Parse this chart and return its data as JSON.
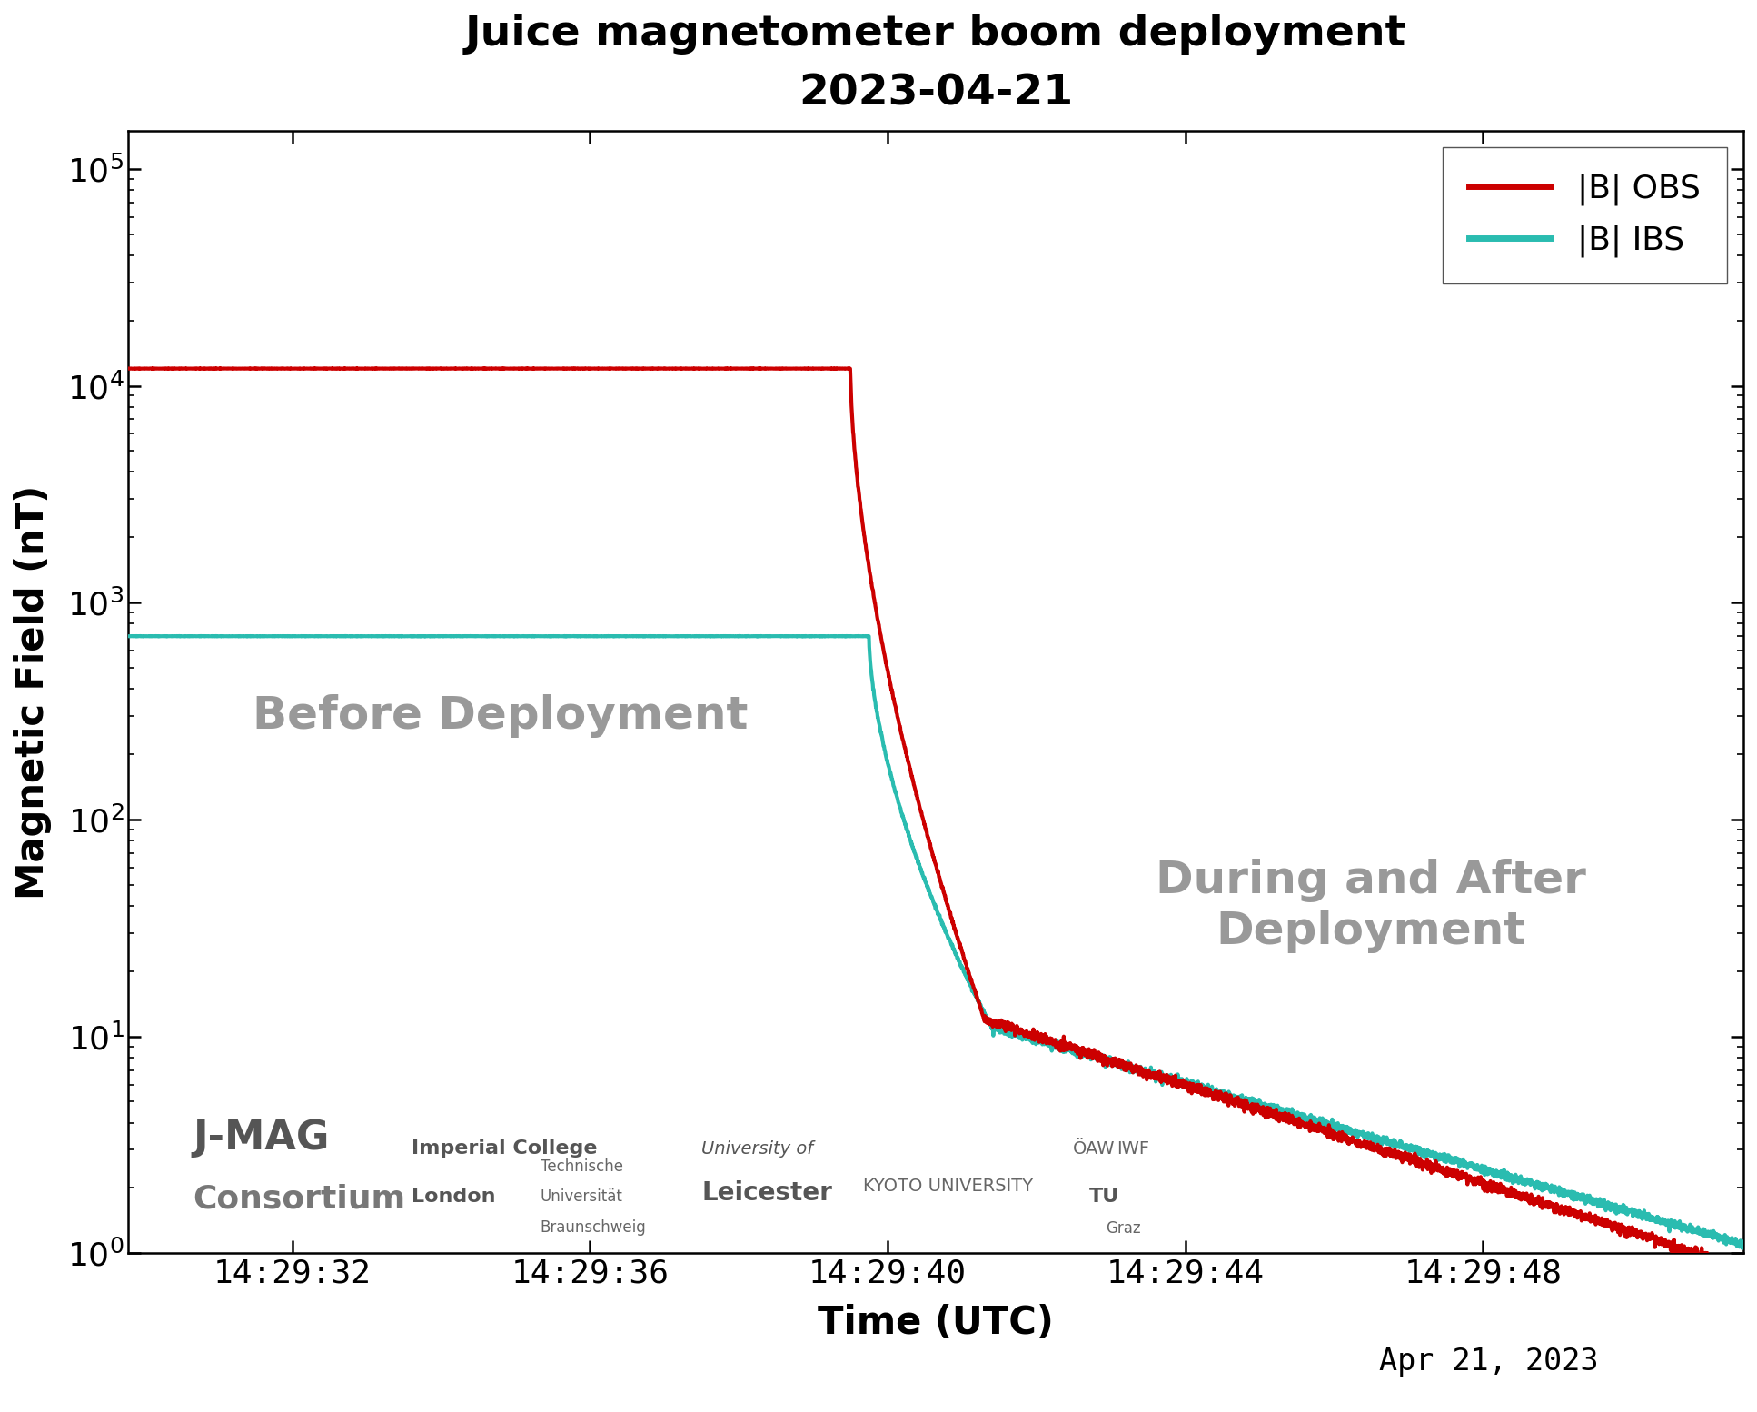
{
  "title_line1": "Juice magnetometer boom deployment",
  "title_line2": "2023-04-21",
  "xlabel": "Time (UTC)",
  "ylabel": "Magnetic Field (nT)",
  "date_label": "Apr 21, 2023",
  "ylim": [
    1.0,
    150000
  ],
  "obs_color": "#cc0000",
  "ibs_color": "#2abcb0",
  "legend_obs": "|B| OBS",
  "legend_ibs": "|B| IBS",
  "before_label": "Before Deployment",
  "after_label": "During and After\nDeployment",
  "label_color": "#999999",
  "xtick_labels": [
    "14:29:32",
    "14:29:36",
    "14:29:40",
    "14:29:44",
    "14:29:48"
  ],
  "xtick_positions": [
    0,
    4,
    8,
    12,
    16
  ],
  "xmin": -2.2,
  "xmax": 19.5,
  "line_width": 3.0
}
